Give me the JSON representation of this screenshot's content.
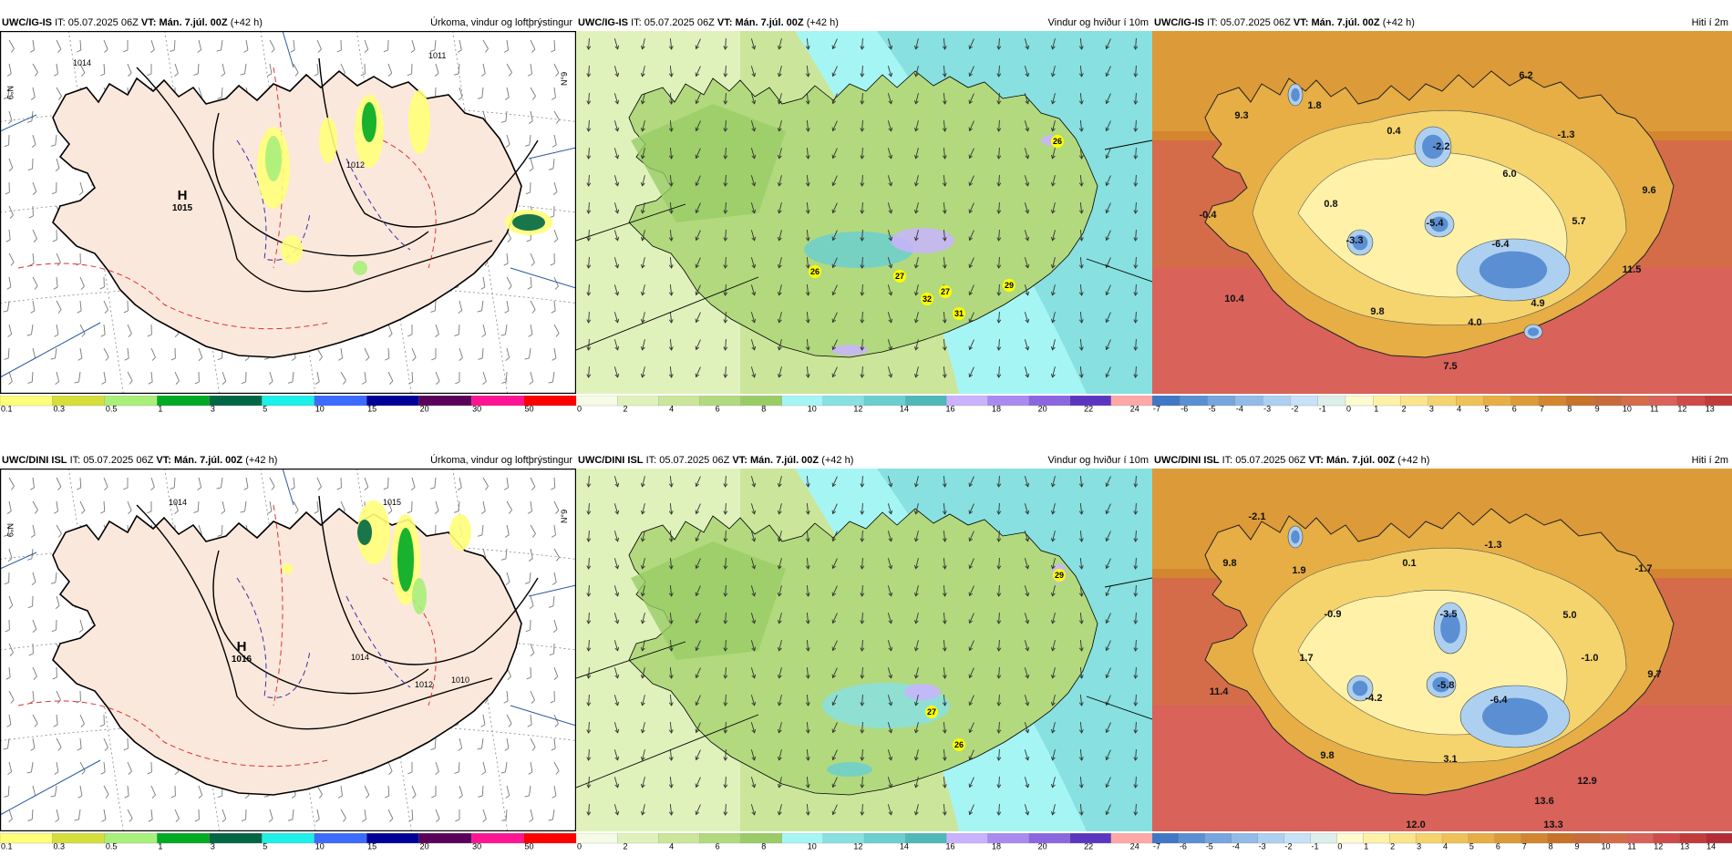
{
  "rows": [
    {
      "model": "UWC/IG-IS",
      "panels": [
        {
          "type": "precip",
          "model": "UWC/IG-IS",
          "it_label": "IT:",
          "it": "05.07.2025 06Z",
          "vt_label": "VT:",
          "vt": "Mán. 7.júl. 00Z",
          "lead": "(+42 h)",
          "title": "Úrkoma, vindur og loftþrýstingur",
          "high": {
            "letter": "H",
            "value": "1015"
          },
          "isobars": [
            "1014",
            "1012",
            "1011"
          ]
        },
        {
          "type": "wind",
          "model": "UWC/IG-IS",
          "it_label": "IT:",
          "it": "05.07.2025 06Z",
          "vt_label": "VT:",
          "vt": "Mán. 7.júl. 00Z",
          "lead": "(+42 h)",
          "title": "Vindur og hviður í 10m",
          "gusts": [
            "26",
            "26",
            "27",
            "32",
            "27",
            "31",
            "29"
          ]
        },
        {
          "type": "temp",
          "model": "UWC/IG-IS",
          "it_label": "IT:",
          "it": "05.07.2025 06Z",
          "vt_label": "VT:",
          "vt": "Mán. 7.júl. 00Z",
          "lead": "(+42 h)",
          "title": "Hiti í 2m",
          "labels": [
            "6.2",
            "9.3",
            "1.8",
            "0.4",
            "-2.2",
            "-1.3",
            "6.0",
            "9.6",
            "0.8",
            "-0.4",
            "-3.3",
            "-5.4",
            "-6.4",
            "5.7",
            "11.5",
            "10.4",
            "9.8",
            "4.0",
            "4.9",
            "7.5"
          ]
        }
      ]
    },
    {
      "model": "UWC/DINI ISL",
      "panels": [
        {
          "type": "precip",
          "model": "UWC/DINI ISL",
          "it_label": "IT:",
          "it": "05.07.2025 06Z",
          "vt_label": "VT:",
          "vt": "Mán. 7.júl. 00Z",
          "lead": "(+42 h)",
          "title": "Úrkoma, vindur og loftþrýstingur",
          "high": {
            "letter": "H",
            "value": "1016"
          },
          "isobars": [
            "1014",
            "1015",
            "1014",
            "1012",
            "1010"
          ]
        },
        {
          "type": "wind",
          "model": "UWC/DINI ISL",
          "it_label": "IT:",
          "it": "05.07.2025 06Z",
          "vt_label": "VT:",
          "vt": "Mán. 7.júl. 00Z",
          "lead": "(+42 h)",
          "title": "Vindur og hviður í 10m",
          "gusts": [
            "29",
            "27",
            "26"
          ]
        },
        {
          "type": "temp",
          "model": "UWC/DINI ISL",
          "it_label": "IT:",
          "it": "05.07.2025 06Z",
          "vt_label": "VT:",
          "vt": "Mán. 7.júl. 00Z",
          "lead": "(+42 h)",
          "title": "Hiti í 2m",
          "labels": [
            "-2.1",
            "9.8",
            "1.9",
            "0.1",
            "-1.3",
            "-1.7",
            "-0.9",
            "-3.5",
            "5.0",
            "1.7",
            "-4.2",
            "-5.8",
            "-6.4",
            "-1.0",
            "9.7",
            "11.4",
            "9.8",
            "3.1",
            "12.9",
            "13.6",
            "12.0",
            "13.3"
          ]
        }
      ]
    }
  ],
  "legends": {
    "precip": {
      "labels": [
        "0.1",
        "0.3",
        "0.5",
        "1",
        "3",
        "5",
        "10",
        "15",
        "20",
        "30",
        "50"
      ],
      "colors": [
        "#ffff7a",
        "#d6de3c",
        "#a8f07a",
        "#00aa22",
        "#006644",
        "#1cf0e8",
        "#3b6bff",
        "#000099",
        "#5a005a",
        "#ff1493",
        "#ff0000"
      ]
    },
    "wind": {
      "labels": [
        "0",
        "2",
        "4",
        "6",
        "8",
        "10",
        "12",
        "14",
        "16",
        "18",
        "20",
        "22",
        "24"
      ],
      "colors": [
        "#f6fbe6",
        "#e0f2bc",
        "#cbe69a",
        "#b2d97e",
        "#99cc66",
        "#a6f5f5",
        "#88e0e0",
        "#6ccfcf",
        "#4fb8b8",
        "#c9b3ff",
        "#a98bf0",
        "#8b66e0",
        "#5a36c0",
        "#ffa8a8"
      ]
    },
    "temp": {
      "labels": [
        "-7",
        "-6",
        "-5",
        "-4",
        "-3",
        "-2",
        "-1",
        "0",
        "1",
        "2",
        "3",
        "4",
        "5",
        "6",
        "7",
        "8",
        "9",
        "10",
        "11",
        "12",
        "13"
      ],
      "labels_bottom": [
        "-7",
        "-6",
        "-5",
        "-4",
        "-3",
        "-2",
        "-1",
        "0",
        "1",
        "2",
        "3",
        "4",
        "5",
        "6",
        "7",
        "8",
        "9",
        "10",
        "11",
        "12",
        "13",
        "14"
      ],
      "colors": [
        "#3f78c6",
        "#5b8fd3",
        "#77a5de",
        "#93bbe8",
        "#aed0f0",
        "#c7e1f6",
        "#dcefea",
        "#fffbd0",
        "#fff2a8",
        "#fbe48a",
        "#f5d46e",
        "#eec257",
        "#e6ae45",
        "#dd9a38",
        "#d3862f",
        "#c97229",
        "#c86a3a",
        "#d46c4a",
        "#d9625a",
        "#cf4a4a",
        "#c23b3b",
        "#b32c36"
      ]
    }
  },
  "grid_labels": {
    "lat_a": "N°9",
    "lat_b": "N°9"
  }
}
